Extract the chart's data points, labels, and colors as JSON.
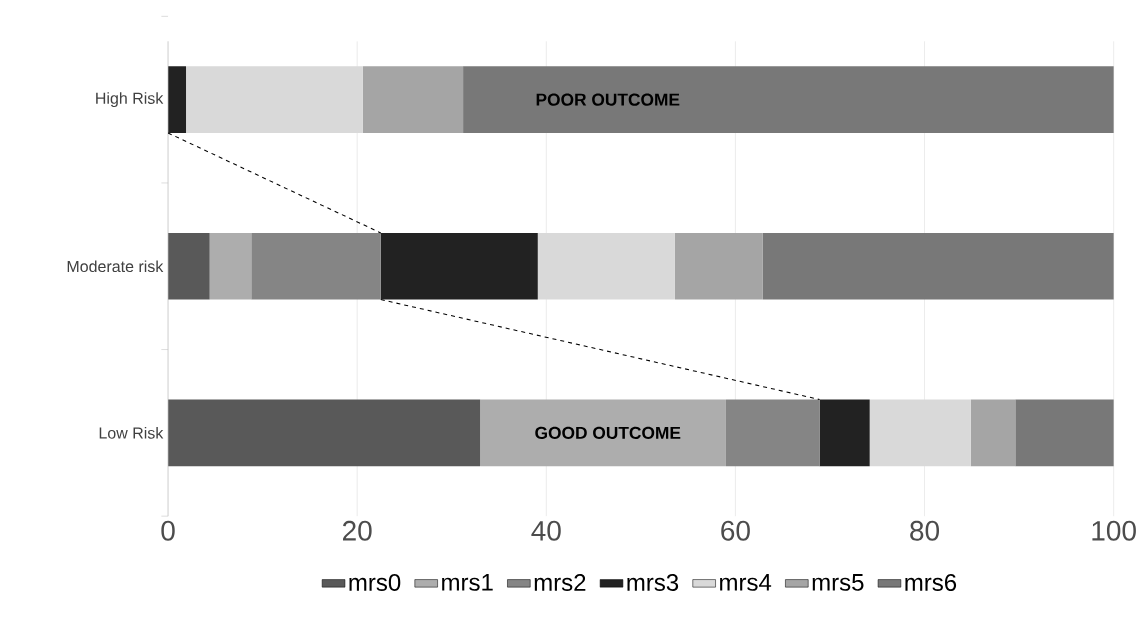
{
  "chart_data": {
    "type": "bar",
    "orientation": "horizontal",
    "stacked": true,
    "categories": [
      "High Risk",
      "Moderate risk",
      "Low Risk"
    ],
    "series": [
      {
        "name": "mrs0",
        "color": "#595959",
        "values": [
          0,
          4.4,
          33.0
        ]
      },
      {
        "name": "mrs1",
        "color": "#adadad",
        "values": [
          0,
          4.4,
          26.0
        ]
      },
      {
        "name": "mrs2",
        "color": "#858585",
        "values": [
          0,
          13.7,
          9.9
        ]
      },
      {
        "name": "mrs3",
        "color": "#222222",
        "values": [
          1.9,
          16.6,
          5.3
        ]
      },
      {
        "name": "mrs4",
        "color": "#d9d9d9",
        "values": [
          18.7,
          14.5,
          10.7
        ]
      },
      {
        "name": "mrs5",
        "color": "#a5a5a5",
        "values": [
          10.6,
          9.3,
          4.7
        ]
      },
      {
        "name": "mrs6",
        "color": "#787878",
        "values": [
          68.8,
          37.1,
          10.4
        ]
      }
    ],
    "xlim": [
      0,
      100
    ],
    "xticks": [
      0,
      20,
      40,
      60,
      80,
      100
    ],
    "grid": "x",
    "legend": "bottom",
    "annotations": [
      "POOR OUTCOME",
      "GOOD OUTCOME"
    ]
  }
}
